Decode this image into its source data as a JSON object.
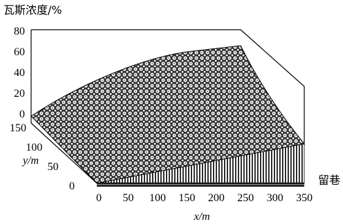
{
  "chart_data": {
    "type": "surface",
    "zlabel": "瓦斯浓度/%",
    "ylabel": "y/m",
    "xlabel": "x/m",
    "side_label": "留巷",
    "zlim": [
      0,
      80
    ],
    "z_ticks": [
      "0",
      "20",
      "40",
      "60",
      "80"
    ],
    "ylim": [
      0,
      150
    ],
    "y_ticks": [
      "0",
      "50",
      "100",
      "150"
    ],
    "xlim": [
      0,
      350
    ],
    "x_ticks": [
      "0",
      "50",
      "100",
      "150",
      "200",
      "250",
      "300",
      "350"
    ],
    "grid": false,
    "surface_points": [
      {
        "x": 0,
        "y": 0,
        "z": 0
      },
      {
        "x": 350,
        "y": 0,
        "z": 17
      },
      {
        "x": 0,
        "y": 150,
        "z": 7
      },
      {
        "x": 100,
        "y": 150,
        "z": 35
      },
      {
        "x": 200,
        "y": 150,
        "z": 55
      },
      {
        "x": 250,
        "y": 150,
        "z": 65
      }
    ]
  }
}
